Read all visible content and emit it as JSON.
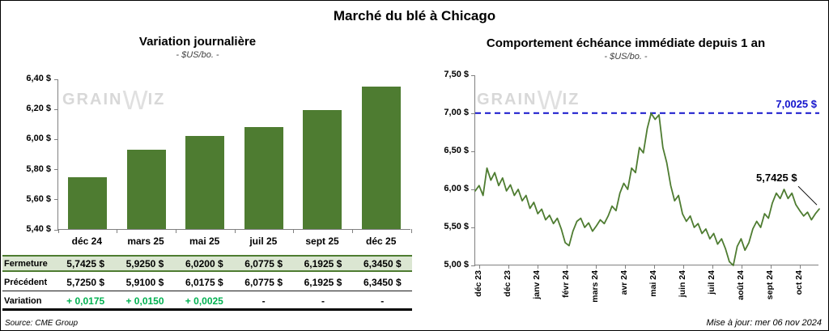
{
  "header": {
    "title": "Marché du blé à Chicago"
  },
  "watermark": {
    "part1": "GRAIN",
    "part2": "W",
    "part3": "IZ"
  },
  "footer": {
    "source": "Source: CME Group",
    "updated": "Mise à jour: mer 06 nov 2024"
  },
  "colors": {
    "bar_green": "#4e7c31",
    "table_row_green_bg": "#dbe6d2",
    "positive_variation_green": "#00B050",
    "reference_blue": "#1414cc"
  },
  "table": {
    "rows": [
      {
        "label": "Fermeture",
        "values": [
          "5,7425 $",
          "5,9250 $",
          "6,0200 $",
          "6,0775 $",
          "6,1925 $",
          "6,3450 $"
        ]
      },
      {
        "label": "Précédent",
        "values": [
          "5,7250 $",
          "5,9100 $",
          "6,0175 $",
          "6,0775 $",
          "6,1925 $",
          "6,3450 $"
        ]
      },
      {
        "label": "Variation",
        "values": [
          "+ 0,0175",
          "+ 0,0150",
          "+ 0,0025",
          "-",
          "-",
          "-"
        ]
      }
    ]
  },
  "chart_data": [
    {
      "type": "bar",
      "title": "Variation journalière",
      "subtitle": "- $US/bo. -",
      "categories": [
        "déc 24",
        "mars 25",
        "mai 25",
        "juil 25",
        "sept 25",
        "déc 25"
      ],
      "values": [
        5.7425,
        5.925,
        6.02,
        6.0775,
        6.1925,
        6.345
      ],
      "ylim": [
        5.4,
        6.4
      ],
      "ytick_labels": [
        "6,40 $",
        "6,20 $",
        "6,00 $",
        "5,80 $",
        "5,60 $",
        "5,40 $"
      ],
      "bar_color": "#4e7c31",
      "grid": false,
      "legend": "none"
    },
    {
      "type": "line",
      "title": "Comportement échéance immédiate depuis 1 an",
      "subtitle": "- $US/bo. -",
      "ylim": [
        5.0,
        7.5
      ],
      "ytick_labels": [
        "7,50 $",
        "7,00 $",
        "6,50 $",
        "6,00 $",
        "5,50 $",
        "5,00 $"
      ],
      "xtick_labels": [
        "déc 23",
        "déc 23",
        "janv 24",
        "févr 24",
        "mars 24",
        "avr 24",
        "mai 24",
        "juin 24",
        "juil 24",
        "août 24",
        "sept 24",
        "oct 24"
      ],
      "values": [
        5.98,
        6.05,
        5.92,
        6.28,
        6.12,
        6.22,
        6.05,
        6.15,
        5.98,
        6.06,
        5.92,
        6.0,
        5.85,
        5.92,
        5.75,
        5.83,
        5.68,
        5.74,
        5.6,
        5.66,
        5.55,
        5.62,
        5.48,
        5.3,
        5.26,
        5.45,
        5.58,
        5.62,
        5.5,
        5.56,
        5.45,
        5.52,
        5.6,
        5.55,
        5.65,
        5.78,
        5.72,
        5.95,
        6.08,
        6.0,
        6.28,
        6.22,
        6.55,
        6.48,
        6.8,
        7.0,
        6.92,
        6.98,
        6.55,
        6.35,
        6.05,
        5.85,
        5.92,
        5.68,
        5.58,
        5.65,
        5.5,
        5.55,
        5.42,
        5.48,
        5.35,
        5.42,
        5.28,
        5.35,
        5.22,
        5.05,
        5.0,
        5.25,
        5.35,
        5.2,
        5.3,
        5.48,
        5.58,
        5.5,
        5.68,
        5.62,
        5.82,
        5.95,
        5.88,
        6.0,
        5.88,
        5.95,
        5.8,
        5.72,
        5.65,
        5.7,
        5.6,
        5.68,
        5.7425
      ],
      "line_color": "#4e7c31",
      "ref_line": {
        "value": 7.0025,
        "label": "7,0025 $",
        "color": "#1414cc"
      },
      "last_label": {
        "value": 5.7425,
        "label": "5,7425 $"
      },
      "grid": false,
      "legend": "none"
    }
  ]
}
